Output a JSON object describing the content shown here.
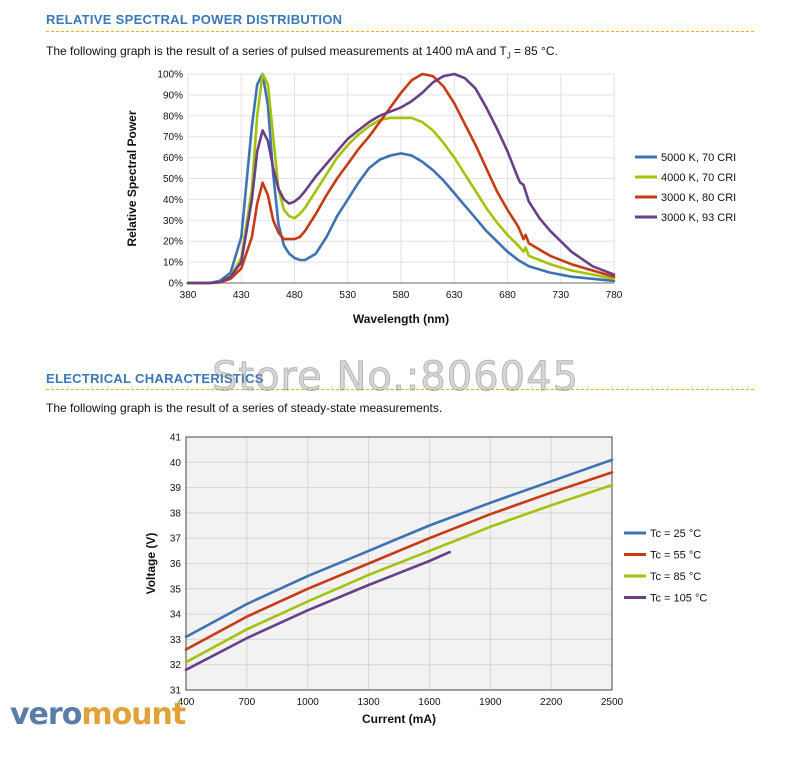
{
  "spd": {
    "heading": "RELATIVE SPECTRAL POWER DISTRIBUTION",
    "desc_a": "The following graph is the result of a series of pulsed measurements at 1400 mA and T",
    "desc_sub": "J",
    "desc_b": " = 85 °C."
  },
  "elec": {
    "heading": "ELECTRICAL CHARACTERISTICS",
    "desc": "The following graph is the result of a series of steady-state measurements."
  },
  "watermark": "Store No.:806045",
  "logo": {
    "part1": "vero",
    "part2": "mount"
  },
  "chart_data": [
    {
      "type": "line",
      "title": "",
      "xlabel": "Wavelength (nm)",
      "ylabel": "Relative Spectral Power",
      "xlim": [
        380,
        780
      ],
      "ylim": [
        0,
        100
      ],
      "xticks": [
        "380",
        "430",
        "480",
        "530",
        "580",
        "630",
        "680",
        "730",
        "780"
      ],
      "yticks": [
        "0%",
        "10%",
        "20%",
        "30%",
        "40%",
        "50%",
        "60%",
        "70%",
        "80%",
        "90%",
        "100%"
      ],
      "legend_position": "right",
      "series": [
        {
          "name": "5000 K, 70 CRI",
          "color": "#3d73b3",
          "x": [
            380,
            400,
            410,
            420,
            430,
            440,
            445,
            450,
            455,
            460,
            465,
            470,
            475,
            480,
            485,
            490,
            500,
            510,
            520,
            530,
            540,
            550,
            560,
            570,
            580,
            590,
            600,
            610,
            620,
            630,
            640,
            650,
            660,
            670,
            680,
            690,
            695,
            700,
            720,
            740,
            760,
            780
          ],
          "y": [
            0,
            0,
            1,
            5,
            22,
            75,
            95,
            100,
            85,
            52,
            28,
            18,
            14,
            12,
            11,
            11,
            14,
            22,
            32,
            40,
            48,
            55,
            59,
            61,
            62,
            61,
            58,
            54,
            49,
            43,
            37,
            31,
            25,
            20,
            15,
            11,
            9.5,
            8,
            5,
            3,
            2,
            1
          ]
        },
        {
          "name": "4000 K, 70 CRI",
          "color": "#a5c20a",
          "x": [
            380,
            400,
            410,
            420,
            430,
            440,
            445,
            450,
            455,
            460,
            465,
            470,
            475,
            480,
            485,
            490,
            500,
            510,
            520,
            530,
            540,
            550,
            560,
            570,
            580,
            590,
            600,
            610,
            620,
            630,
            640,
            650,
            660,
            670,
            680,
            690,
            695,
            697,
            700,
            710,
            720,
            740,
            760,
            780
          ],
          "y": [
            0,
            0,
            0.5,
            3,
            12,
            45,
            80,
            100,
            95,
            70,
            45,
            35,
            32,
            31,
            33,
            36,
            44,
            52,
            60,
            66,
            71,
            75,
            78,
            79,
            79,
            79,
            77,
            73,
            67,
            60,
            52,
            44,
            36,
            29,
            23,
            18,
            15,
            17,
            13,
            11,
            9,
            6,
            4,
            2
          ]
        },
        {
          "name": "3000 K, 80 CRI",
          "color": "#c83b12",
          "x": [
            380,
            400,
            410,
            420,
            430,
            440,
            445,
            450,
            455,
            460,
            465,
            470,
            475,
            480,
            485,
            490,
            500,
            510,
            520,
            530,
            540,
            550,
            560,
            570,
            580,
            590,
            600,
            610,
            620,
            630,
            640,
            650,
            660,
            670,
            680,
            690,
            695,
            697,
            700,
            710,
            720,
            740,
            760,
            780
          ],
          "y": [
            0,
            0,
            0.3,
            2,
            7,
            22,
            38,
            48,
            42,
            30,
            24,
            21,
            21,
            21,
            22,
            25,
            33,
            42,
            50,
            57,
            64,
            70,
            77,
            84,
            91,
            97,
            100,
            99,
            94,
            86,
            76,
            66,
            55,
            44,
            35,
            27,
            21,
            23,
            19,
            16,
            13,
            9,
            6,
            3
          ]
        },
        {
          "name": "3000 K, 93 CRI",
          "color": "#6a3f8a",
          "x": [
            380,
            400,
            410,
            420,
            430,
            440,
            445,
            450,
            455,
            460,
            465,
            470,
            475,
            480,
            485,
            490,
            500,
            510,
            520,
            530,
            540,
            550,
            560,
            570,
            580,
            590,
            600,
            610,
            620,
            630,
            640,
            650,
            660,
            670,
            680,
            690,
            692,
            695,
            700,
            710,
            720,
            740,
            760,
            780
          ],
          "y": [
            0,
            0,
            0.5,
            3,
            10,
            40,
            63,
            73,
            68,
            55,
            45,
            40,
            38,
            39,
            41,
            44,
            51,
            57,
            63,
            69,
            73,
            77,
            80,
            82,
            84,
            87,
            91,
            96,
            99,
            100,
            98,
            93,
            84,
            74,
            63,
            50,
            48,
            47,
            39,
            31,
            25,
            15,
            8,
            4
          ]
        }
      ]
    },
    {
      "type": "line",
      "title": "",
      "xlabel": "Current (mA)",
      "ylabel": "Voltage (V)",
      "xlim": [
        400,
        2500
      ],
      "ylim": [
        31,
        41
      ],
      "xticks": [
        "400",
        "700",
        "1000",
        "1300",
        "1600",
        "1900",
        "2200",
        "2500"
      ],
      "yticks": [
        "31",
        "32",
        "33",
        "34",
        "35",
        "36",
        "37",
        "38",
        "39",
        "40",
        "41"
      ],
      "legend_position": "right",
      "series": [
        {
          "name": "Tc = 25 °C",
          "color": "#3d73b3",
          "x": [
            400,
            700,
            1000,
            1300,
            1600,
            1900,
            2200,
            2500
          ],
          "y": [
            33.1,
            34.4,
            35.5,
            36.5,
            37.5,
            38.4,
            39.25,
            40.1
          ]
        },
        {
          "name": "Tc = 55 °C",
          "color": "#c83b12",
          "x": [
            400,
            700,
            1000,
            1300,
            1600,
            1900,
            2200,
            2500
          ],
          "y": [
            32.6,
            33.9,
            35.0,
            36.0,
            37.0,
            37.95,
            38.8,
            39.6
          ]
        },
        {
          "name": "Tc = 85 °C",
          "color": "#a5c20a",
          "x": [
            400,
            700,
            1000,
            1300,
            1600,
            1900,
            2200,
            2500
          ],
          "y": [
            32.1,
            33.4,
            34.5,
            35.55,
            36.5,
            37.45,
            38.3,
            39.1
          ]
        },
        {
          "name": "Tc = 105 °C",
          "color": "#6a3f8a",
          "x": [
            400,
            700,
            1000,
            1300,
            1600,
            1700
          ],
          "y": [
            31.8,
            33.05,
            34.15,
            35.15,
            36.1,
            36.45
          ]
        }
      ]
    }
  ]
}
